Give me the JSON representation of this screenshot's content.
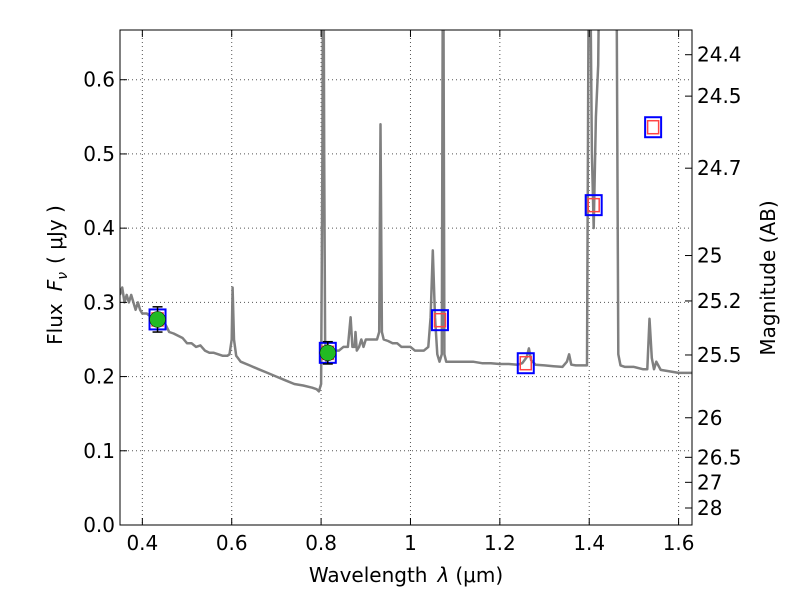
{
  "chart_data": {
    "type": "line",
    "xlabel": "Wavelength",
    "xlabel_symbol": "λ",
    "xlabel_unit": "(μm)",
    "ylabel": "Flux",
    "ylabel_symbol": "F",
    "ylabel_symbol_sub": "ν",
    "ylabel_unit": "( μJy )",
    "y2label": "Magnitude (AB)",
    "xlim": [
      0.35,
      1.63
    ],
    "ylim": [
      0.0,
      0.667
    ],
    "grid": true,
    "x_ticks": [
      {
        "value": 0.4,
        "label": "0.4"
      },
      {
        "value": 0.6,
        "label": "0.6"
      },
      {
        "value": 0.8,
        "label": "0.8"
      },
      {
        "value": 1.0,
        "label": "1"
      },
      {
        "value": 1.2,
        "label": "1.2"
      },
      {
        "value": 1.4,
        "label": "1.4"
      },
      {
        "value": 1.6,
        "label": "1.6"
      }
    ],
    "y_ticks": [
      {
        "value": 0.0,
        "label": "0.0"
      },
      {
        "value": 0.1,
        "label": "0.1"
      },
      {
        "value": 0.2,
        "label": "0.2"
      },
      {
        "value": 0.3,
        "label": "0.3"
      },
      {
        "value": 0.4,
        "label": "0.4"
      },
      {
        "value": 0.5,
        "label": "0.5"
      },
      {
        "value": 0.6,
        "label": "0.6"
      }
    ],
    "y2_ticks": [
      {
        "flux": 0.6337,
        "label": "24.4"
      },
      {
        "flux": 0.5779,
        "label": "24.5"
      },
      {
        "flux": 0.4808,
        "label": "24.7"
      },
      {
        "flux": 0.3631,
        "label": "25"
      },
      {
        "flux": 0.3019,
        "label": "25.2"
      },
      {
        "flux": 0.2291,
        "label": "25.5"
      },
      {
        "flux": 0.1445,
        "label": "26"
      },
      {
        "flux": 0.0912,
        "label": "26.5"
      },
      {
        "flux": 0.0575,
        "label": "27"
      },
      {
        "flux": 0.0229,
        "label": "28"
      }
    ],
    "colors": {
      "spectrum": "#808080",
      "observed_fill": "#22bb22",
      "model_box": "#0000ff",
      "model_inner": "#ff4444",
      "grid": "#555555"
    },
    "spectrum": {
      "x": [
        0.35,
        0.355,
        0.36,
        0.365,
        0.37,
        0.375,
        0.38,
        0.385,
        0.39,
        0.395,
        0.4,
        0.41,
        0.42,
        0.43,
        0.44,
        0.45,
        0.46,
        0.47,
        0.48,
        0.49,
        0.5,
        0.51,
        0.52,
        0.53,
        0.54,
        0.55,
        0.56,
        0.57,
        0.58,
        0.59,
        0.595,
        0.6,
        0.602,
        0.605,
        0.61,
        0.62,
        0.64,
        0.66,
        0.68,
        0.7,
        0.72,
        0.74,
        0.76,
        0.78,
        0.79,
        0.795,
        0.8,
        0.803,
        0.805,
        0.807,
        0.809,
        0.812,
        0.815,
        0.82,
        0.83,
        0.84,
        0.85,
        0.86,
        0.866,
        0.87,
        0.875,
        0.877,
        0.88,
        0.885,
        0.89,
        0.895,
        0.9,
        0.91,
        0.92,
        0.925,
        0.93,
        0.933,
        0.936,
        0.94,
        0.95,
        0.96,
        0.97,
        0.98,
        0.99,
        1.0,
        1.01,
        1.02,
        1.03,
        1.04,
        1.045,
        1.05,
        1.055,
        1.06,
        1.065,
        1.07,
        1.073,
        1.076,
        1.08,
        1.083,
        1.09,
        1.1,
        1.12,
        1.14,
        1.16,
        1.18,
        1.2,
        1.22,
        1.24,
        1.25,
        1.26,
        1.265,
        1.27,
        1.28,
        1.3,
        1.32,
        1.34,
        1.35,
        1.355,
        1.36,
        1.37,
        1.38,
        1.39,
        1.395,
        1.4,
        1.403,
        1.406,
        1.41,
        1.415,
        1.42,
        1.425,
        1.43,
        1.435,
        1.44,
        1.45,
        1.455,
        1.46,
        1.465,
        1.47,
        1.48,
        1.5,
        1.52,
        1.53,
        1.535,
        1.54,
        1.545,
        1.55,
        1.56,
        1.58,
        1.6,
        1.63
      ],
      "y": [
        0.31,
        0.32,
        0.3,
        0.31,
        0.3,
        0.31,
        0.3,
        0.29,
        0.3,
        0.29,
        0.285,
        0.285,
        0.28,
        0.28,
        0.27,
        0.272,
        0.26,
        0.258,
        0.255,
        0.252,
        0.245,
        0.245,
        0.24,
        0.242,
        0.235,
        0.232,
        0.232,
        0.23,
        0.228,
        0.228,
        0.23,
        0.25,
        0.32,
        0.25,
        0.228,
        0.22,
        0.215,
        0.21,
        0.205,
        0.2,
        0.195,
        0.19,
        0.188,
        0.185,
        0.183,
        0.18,
        0.19,
        0.5,
        0.9,
        0.5,
        0.25,
        0.22,
        0.23,
        0.235,
        0.235,
        0.235,
        0.24,
        0.24,
        0.28,
        0.24,
        0.24,
        0.26,
        0.235,
        0.24,
        0.25,
        0.24,
        0.25,
        0.25,
        0.25,
        0.25,
        0.26,
        0.54,
        0.26,
        0.25,
        0.248,
        0.245,
        0.245,
        0.24,
        0.24,
        0.24,
        0.235,
        0.235,
        0.235,
        0.24,
        0.28,
        0.37,
        0.28,
        0.23,
        0.22,
        0.23,
        0.9,
        0.23,
        0.22,
        0.22,
        0.22,
        0.22,
        0.22,
        0.22,
        0.218,
        0.218,
        0.217,
        0.217,
        0.216,
        0.218,
        0.226,
        0.238,
        0.222,
        0.216,
        0.215,
        0.214,
        0.213,
        0.22,
        0.23,
        0.216,
        0.215,
        0.215,
        0.215,
        0.215,
        0.9,
        0.7,
        0.5,
        0.4,
        0.55,
        0.62,
        0.9,
        0.9,
        0.9,
        0.9,
        0.9,
        0.9,
        0.9,
        0.23,
        0.215,
        0.213,
        0.213,
        0.21,
        0.21,
        0.278,
        0.225,
        0.21,
        0.22,
        0.209,
        0.207,
        0.205,
        0.205
      ]
    },
    "observed": [
      {
        "x": 0.434,
        "y": 0.277,
        "yerr": 0.017
      },
      {
        "x": 0.815,
        "y": 0.232,
        "yerr": 0.015
      }
    ],
    "model_photometry": [
      {
        "x": 0.434,
        "y": 0.277
      },
      {
        "x": 0.815,
        "y": 0.232
      },
      {
        "x": 1.066,
        "y": 0.276
      },
      {
        "x": 1.258,
        "y": 0.218
      },
      {
        "x": 1.41,
        "y": 0.431
      },
      {
        "x": 1.543,
        "y": 0.536
      }
    ]
  }
}
